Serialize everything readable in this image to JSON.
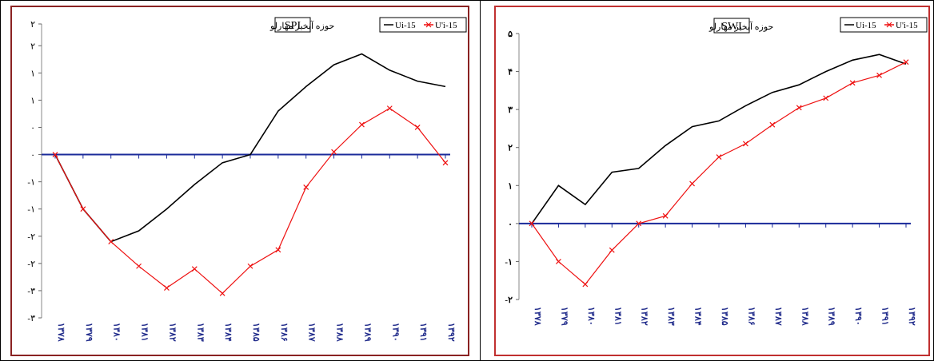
{
  "charts": [
    {
      "id": "left",
      "chart_data": {
        "type": "line",
        "title": "SPI",
        "subtitle": "حوزه آبخیز مهارلو",
        "categories": [
          "۱۳۷۸",
          "۱۳۷۹",
          "۱۳۸۰",
          "۱۳۸۱",
          "۱۳۸۲",
          "۱۳۸۳",
          "۱۳۸۴",
          "۱۳۸۵",
          "۱۳۸۶",
          "۱۳۸۷",
          "۱۳۸۸",
          "۱۳۸۹",
          "۱۳۹۰",
          "۱۳۹۱",
          "۱۳۹۲"
        ],
        "ylim": [
          -3,
          2.4
        ],
        "yticks": [
          {
            "v": 2.4,
            "label": "۲"
          },
          {
            "v": 2,
            "label": "۲"
          },
          {
            "v": 1.5,
            "label": "۱"
          },
          {
            "v": 1,
            "label": "۱"
          },
          {
            "v": 0.5,
            "label": "۰"
          },
          {
            "v": 0,
            "label": "۰"
          },
          {
            "v": -0.5,
            "label": "-۱"
          },
          {
            "v": -1,
            "label": "-۱"
          },
          {
            "v": -1.5,
            "label": "-۲"
          },
          {
            "v": -2,
            "label": "-۲"
          },
          {
            "v": -2.5,
            "label": "-۳"
          },
          {
            "v": -3,
            "label": "-۳"
          }
        ],
        "zero": 0,
        "series": [
          {
            "name": "Ui-15",
            "color": "#000000",
            "marker": "none",
            "values": [
              0,
              -1.0,
              -1.6,
              -1.4,
              -1.0,
              -0.55,
              -0.15,
              0.0,
              0.8,
              1.25,
              1.65,
              1.85,
              1.55,
              1.35,
              1.25
            ]
          },
          {
            "name": "U'i-15",
            "color": "#ee1111",
            "marker": "x",
            "values": [
              0,
              -1.0,
              -1.6,
              -2.05,
              -2.45,
              -2.1,
              -2.55,
              -2.05,
              -1.75,
              -0.6,
              0.05,
              0.55,
              0.85,
              0.5,
              -0.15
            ]
          }
        ],
        "legend": "top-right"
      }
    },
    {
      "id": "right",
      "chart_data": {
        "type": "line",
        "title": "SWI",
        "subtitle": "حوزه آبخیز مهارلو",
        "categories": [
          "۱۳۷۸",
          "۱۳۷۹",
          "۱۳۸۰",
          "۱۳۸۱",
          "۱۳۸۲",
          "۱۳۸۳",
          "۱۳۸۴",
          "۱۳۸۵",
          "۱۳۸۶",
          "۱۳۸۷",
          "۱۳۸۸",
          "۱۳۸۹",
          "۱۳۹۰",
          "۱۳۹۱",
          "۱۳۹۲"
        ],
        "ylim": [
          -2,
          5
        ],
        "yticks": [
          {
            "v": 5,
            "label": "۵"
          },
          {
            "v": 4,
            "label": "۴"
          },
          {
            "v": 3,
            "label": "۳"
          },
          {
            "v": 2,
            "label": "۲"
          },
          {
            "v": 1,
            "label": "۱"
          },
          {
            "v": 0,
            "label": "۰"
          },
          {
            "v": -1,
            "label": "-۱"
          },
          {
            "v": -2,
            "label": "-۲"
          }
        ],
        "zero": 0,
        "series": [
          {
            "name": "Ui-15",
            "color": "#000000",
            "marker": "none",
            "values": [
              0,
              1.0,
              0.5,
              1.35,
              1.45,
              2.05,
              2.55,
              2.7,
              3.1,
              3.45,
              3.65,
              4.0,
              4.3,
              4.45,
              4.2
            ]
          },
          {
            "name": "U'i-15",
            "color": "#ee1111",
            "marker": "x",
            "values": [
              0,
              -1.0,
              -1.6,
              -0.7,
              0.0,
              0.2,
              1.05,
              1.75,
              2.1,
              2.6,
              3.05,
              3.3,
              3.7,
              3.9,
              4.25
            ]
          }
        ],
        "legend": "top-right"
      }
    }
  ]
}
